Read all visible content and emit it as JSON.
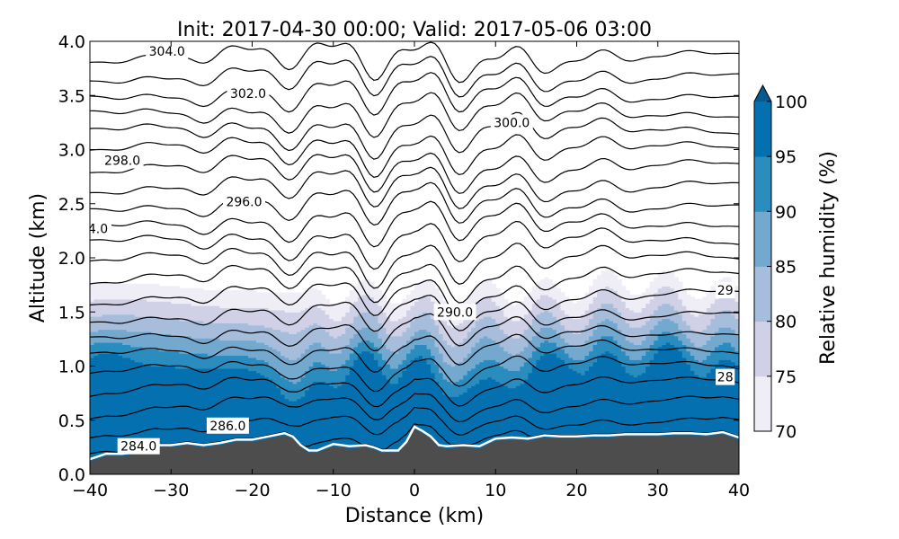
{
  "chart_data": {
    "type": "contour",
    "title": "Init: 2017-04-30 00:00; Valid: 2017-05-06 03:00",
    "xlabel": "Distance (km)",
    "ylabel": "Altitude (km)",
    "xlim": [
      -40,
      40
    ],
    "ylim": [
      0.0,
      4.0
    ],
    "x_ticks": [
      "−40",
      "−30",
      "−20",
      "−10",
      "0",
      "10",
      "20",
      "30",
      "40"
    ],
    "y_ticks": [
      "0.0",
      "0.5",
      "1.0",
      "1.5",
      "2.0",
      "2.5",
      "3.0",
      "3.5",
      "4.0"
    ],
    "colorbar": {
      "label": "Relative humidity (%)",
      "ticks": [
        "70",
        "75",
        "80",
        "85",
        "90",
        "95",
        "100"
      ],
      "levels": [
        70,
        75,
        80,
        85,
        90,
        95,
        100
      ],
      "colors": [
        "#efedf5",
        "#d0d1e6",
        "#a6bddb",
        "#74a9cf",
        "#2b8cbe",
        "#0570b0",
        "#045a8d"
      ],
      "extend": "max"
    },
    "filled_field": "Relative humidity (%)",
    "contour_field": "potential temperature",
    "contour_levels": [
      284,
      285,
      286,
      287,
      288,
      289,
      290,
      291,
      292,
      293,
      294,
      295,
      296,
      297,
      298,
      299,
      300,
      301,
      302,
      303,
      304,
      305
    ],
    "contour_labels": [
      {
        "text": "304.0",
        "x": -30.5,
        "y": 3.91
      },
      {
        "text": "302.0",
        "x": -20.5,
        "y": 3.52
      },
      {
        "text": "300.0",
        "x": 12.0,
        "y": 3.25
      },
      {
        "text": "298.0",
        "x": -36.0,
        "y": 2.9
      },
      {
        "text": "296.0",
        "x": -21.0,
        "y": 2.52
      },
      {
        "text": "4.0",
        "x": -39.0,
        "y": 2.27
      },
      {
        "text": "29",
        "x": 38.3,
        "y": 1.7
      },
      {
        "text": "290.0",
        "x": 5.0,
        "y": 1.5
      },
      {
        "text": "28",
        "x": 38.3,
        "y": 0.9
      },
      {
        "text": "286.0",
        "x": -23.0,
        "y": 0.45
      },
      {
        "text": "284.0",
        "x": -34.0,
        "y": 0.26
      }
    ],
    "terrain_color": "#4d4d4d",
    "terrain": [
      {
        "x": -40,
        "y": 0.12
      },
      {
        "x": -38,
        "y": 0.17
      },
      {
        "x": -36,
        "y": 0.17
      },
      {
        "x": -34,
        "y": 0.19
      },
      {
        "x": -32,
        "y": 0.25
      },
      {
        "x": -30,
        "y": 0.25
      },
      {
        "x": -28,
        "y": 0.27
      },
      {
        "x": -26,
        "y": 0.25
      },
      {
        "x": -24,
        "y": 0.27
      },
      {
        "x": -22,
        "y": 0.3
      },
      {
        "x": -20,
        "y": 0.3
      },
      {
        "x": -18,
        "y": 0.33
      },
      {
        "x": -16,
        "y": 0.36
      },
      {
        "x": -15,
        "y": 0.33
      },
      {
        "x": -14,
        "y": 0.25
      },
      {
        "x": -13,
        "y": 0.2
      },
      {
        "x": -12,
        "y": 0.2
      },
      {
        "x": -10,
        "y": 0.26
      },
      {
        "x": -8,
        "y": 0.24
      },
      {
        "x": -6,
        "y": 0.25
      },
      {
        "x": -5,
        "y": 0.23
      },
      {
        "x": -4,
        "y": 0.2
      },
      {
        "x": -2,
        "y": 0.2
      },
      {
        "x": -1,
        "y": 0.28
      },
      {
        "x": 0,
        "y": 0.42
      },
      {
        "x": 1,
        "y": 0.38
      },
      {
        "x": 2,
        "y": 0.33
      },
      {
        "x": 3,
        "y": 0.25
      },
      {
        "x": 4,
        "y": 0.24
      },
      {
        "x": 6,
        "y": 0.25
      },
      {
        "x": 8,
        "y": 0.24
      },
      {
        "x": 10,
        "y": 0.31
      },
      {
        "x": 12,
        "y": 0.32
      },
      {
        "x": 14,
        "y": 0.31
      },
      {
        "x": 16,
        "y": 0.34
      },
      {
        "x": 18,
        "y": 0.33
      },
      {
        "x": 20,
        "y": 0.33
      },
      {
        "x": 22,
        "y": 0.34
      },
      {
        "x": 24,
        "y": 0.34
      },
      {
        "x": 26,
        "y": 0.35
      },
      {
        "x": 28,
        "y": 0.35
      },
      {
        "x": 30,
        "y": 0.35
      },
      {
        "x": 32,
        "y": 0.36
      },
      {
        "x": 34,
        "y": 0.36
      },
      {
        "x": 36,
        "y": 0.35
      },
      {
        "x": 38,
        "y": 0.37
      },
      {
        "x": 40,
        "y": 0.32
      }
    ]
  }
}
